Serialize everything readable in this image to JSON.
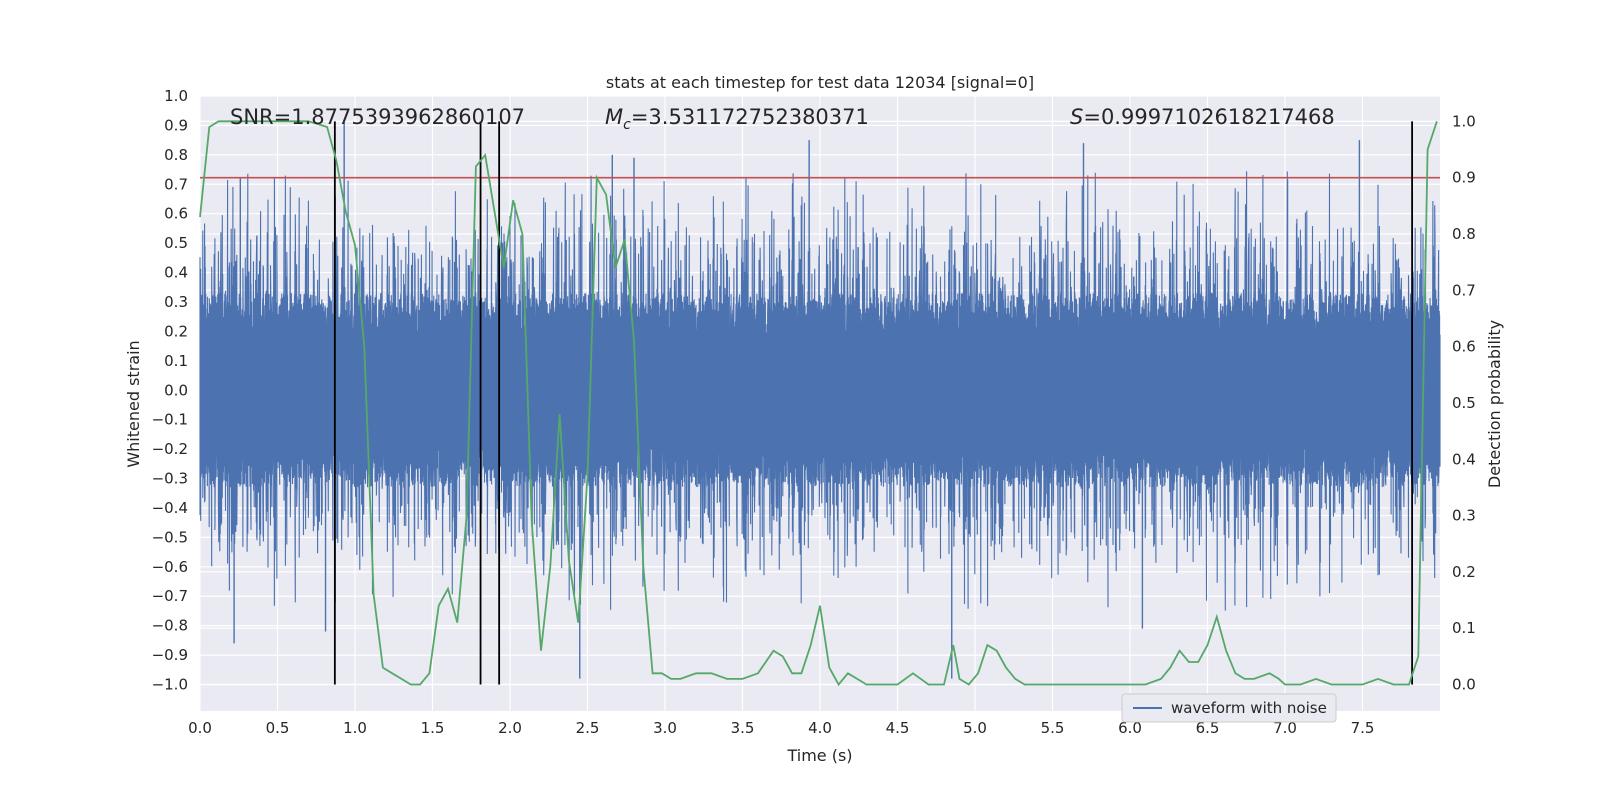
{
  "chart_data": {
    "type": "line",
    "title": "stats at each timestep for test data 12034 [signal=0]",
    "xlabel": "Time (s)",
    "ylabel_left": "Whitened strain",
    "ylabel_right": "Detection probability",
    "xlim": [
      0.0,
      8.0
    ],
    "ylim_left": [
      -1.09,
      1.0
    ],
    "ylim_right": [
      -0.047,
      1.045
    ],
    "x_ticks": [
      "0.0",
      "0.5",
      "1.0",
      "1.5",
      "2.0",
      "2.5",
      "3.0",
      "3.5",
      "4.0",
      "4.5",
      "5.0",
      "5.5",
      "6.0",
      "6.5",
      "7.0",
      "7.5"
    ],
    "y_ticks_left": [
      "1.0",
      "0.9",
      "0.8",
      "0.7",
      "0.6",
      "0.5",
      "0.4",
      "0.3",
      "0.2",
      "0.1",
      "0.0",
      "−0.1",
      "−0.2",
      "−0.3",
      "−0.4",
      "−0.5",
      "−0.6",
      "−0.7",
      "−0.8",
      "−0.9",
      "−1.0"
    ],
    "y_ticks_right": [
      "1.0",
      "0.9",
      "0.8",
      "0.7",
      "0.6",
      "0.5",
      "0.4",
      "0.3",
      "0.2",
      "0.1",
      "0.0"
    ],
    "annotations": {
      "snr": "SNR=1.8775393962860107",
      "mc_sym": "M",
      "mc_sub": "c",
      "mc_val": "=3.531172752380371",
      "s_sym": "S",
      "s_val": "=0.9997102618217468"
    },
    "threshold": 0.9,
    "vertical_lines": [
      0.87,
      1.81,
      1.93,
      7.82
    ],
    "series": [
      {
        "name": "waveform with noise",
        "axis": "left",
        "color": "#4c72b0",
        "samples": 3500,
        "amplitude_core": 0.3,
        "spikes": [
          {
            "t": 0.22,
            "v": -0.86
          },
          {
            "t": 0.26,
            "v": 0.72
          },
          {
            "t": 0.81,
            "v": -0.82
          },
          {
            "t": 0.93,
            "v": 0.91
          },
          {
            "t": 2.45,
            "v": -0.98
          },
          {
            "t": 2.66,
            "v": 0.8
          },
          {
            "t": 2.8,
            "v": 0.79
          },
          {
            "t": 3.93,
            "v": 0.85
          },
          {
            "t": 4.85,
            "v": -0.98
          },
          {
            "t": 5.7,
            "v": 0.84
          },
          {
            "t": 6.08,
            "v": -0.81
          },
          {
            "t": 7.48,
            "v": 0.85
          }
        ]
      },
      {
        "name": "detection probability",
        "axis": "right",
        "color": "#55a868",
        "x": [
          0.0,
          0.06,
          0.12,
          0.25,
          0.5,
          0.7,
          0.82,
          0.88,
          0.94,
          1.0,
          1.06,
          1.12,
          1.18,
          1.24,
          1.3,
          1.36,
          1.42,
          1.48,
          1.54,
          1.6,
          1.66,
          1.72,
          1.78,
          1.84,
          1.9,
          1.96,
          2.02,
          2.08,
          2.14,
          2.2,
          2.26,
          2.32,
          2.38,
          2.44,
          2.5,
          2.56,
          2.62,
          2.68,
          2.74,
          2.8,
          2.86,
          2.92,
          2.98,
          3.04,
          3.1,
          3.2,
          3.3,
          3.4,
          3.5,
          3.6,
          3.7,
          3.76,
          3.82,
          3.88,
          3.94,
          4.0,
          4.06,
          4.12,
          4.18,
          4.24,
          4.3,
          4.36,
          4.42,
          4.5,
          4.6,
          4.7,
          4.8,
          4.86,
          4.9,
          4.96,
          5.02,
          5.08,
          5.14,
          5.2,
          5.26,
          5.32,
          5.4,
          5.5,
          5.7,
          6.0,
          6.1,
          6.2,
          6.26,
          6.32,
          6.38,
          6.44,
          6.5,
          6.56,
          6.62,
          6.68,
          6.74,
          6.8,
          6.9,
          6.96,
          7.0,
          7.1,
          7.2,
          7.3,
          7.4,
          7.5,
          7.6,
          7.7,
          7.8,
          7.86,
          7.92,
          7.98
        ],
        "y": [
          0.83,
          0.99,
          1.0,
          1.0,
          1.0,
          1.0,
          0.99,
          0.93,
          0.84,
          0.78,
          0.6,
          0.16,
          0.03,
          0.02,
          0.01,
          0.0,
          0.0,
          0.02,
          0.14,
          0.17,
          0.11,
          0.3,
          0.92,
          0.94,
          0.84,
          0.74,
          0.86,
          0.8,
          0.29,
          0.06,
          0.21,
          0.48,
          0.22,
          0.11,
          0.37,
          0.9,
          0.87,
          0.74,
          0.79,
          0.61,
          0.21,
          0.02,
          0.02,
          0.01,
          0.01,
          0.02,
          0.02,
          0.01,
          0.01,
          0.02,
          0.06,
          0.05,
          0.02,
          0.02,
          0.07,
          0.14,
          0.03,
          0.0,
          0.02,
          0.01,
          0.0,
          0.0,
          0.0,
          0.0,
          0.02,
          0.0,
          0.0,
          0.07,
          0.01,
          0.0,
          0.02,
          0.07,
          0.06,
          0.03,
          0.01,
          0.0,
          0.0,
          0.0,
          0.0,
          0.0,
          0.0,
          0.01,
          0.03,
          0.06,
          0.04,
          0.04,
          0.07,
          0.12,
          0.06,
          0.02,
          0.01,
          0.01,
          0.02,
          0.01,
          0.0,
          0.0,
          0.01,
          0.0,
          0.0,
          0.0,
          0.01,
          0.0,
          0.0,
          0.05,
          0.95,
          1.0
        ]
      }
    ],
    "legend": {
      "label": "waveform with noise",
      "position": "lower-right"
    }
  }
}
